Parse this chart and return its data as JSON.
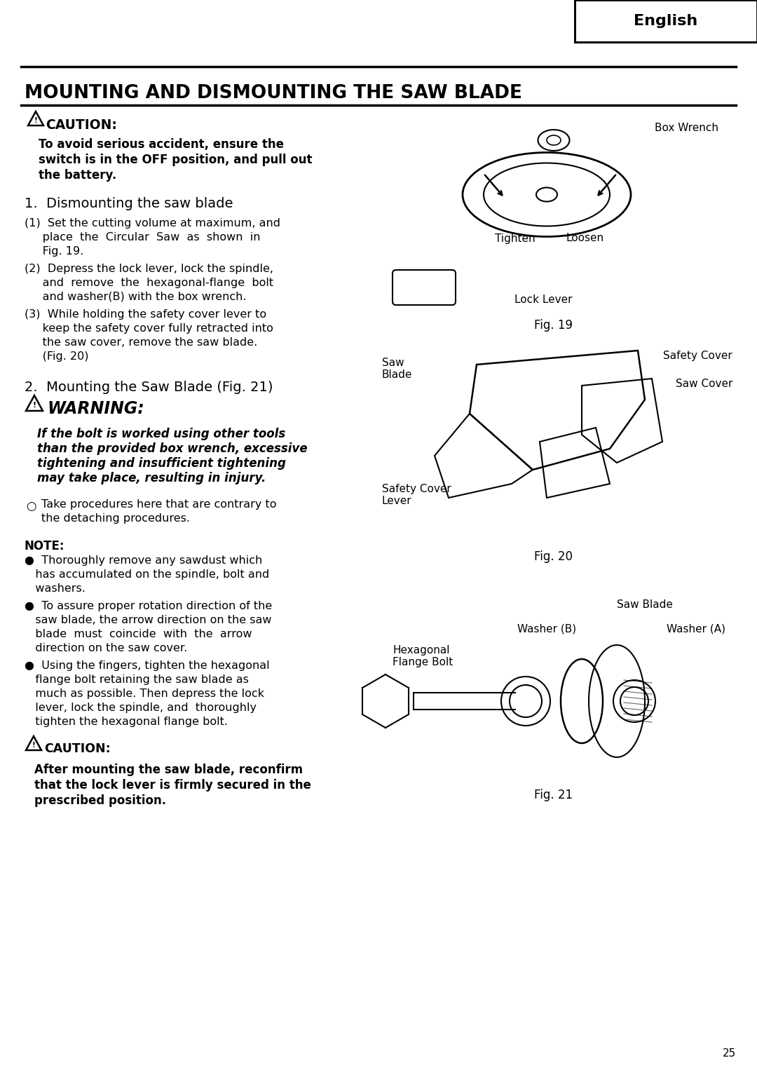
{
  "bg_color": "#ffffff",
  "page_width": 10.8,
  "page_height": 15.29,
  "header_text": "English",
  "title": "MOUNTING AND DISMOUNTING THE SAW BLADE",
  "caution_symbol": "⚠",
  "caution_label": "CAUTION:",
  "caution_text": "To avoid serious accident, ensure the\nswitch is in the OFF position, and pull out\nthe battery.",
  "section1_title": "1.  Dismounting the saw blade",
  "step1": "(1)  Set the cutting volume at maximum, and\n     place the Circular Saw as shown in\n     Fig. 19.",
  "step2": "(2)  Depress the lock lever, lock the spindle,\n     and  remove  the  hexagonal-flange  bolt\n     and washer(B) with the box wrench.",
  "step3": "(3)  While holding the safety cover lever to\n     keep the safety cover fully retracted into\n     the saw cover, remove the saw blade.\n     (Fig. 20)",
  "section2_title": "2.  Mounting the Saw Blade (Fig. 21)",
  "warning_label": "WARNING:",
  "warning_text": "If the bolt is worked using other tools\nthan the provided box wrench, excessive\ntightening and insufficient tightening\nmay take place, resulting in injury.",
  "circle_bullet": "○",
  "circle_text": "Take procedures here that are contrary to\nthe detaching procedures.",
  "note_label": "NOTE:",
  "note1": "●  Thoroughly remove any sawdust which\n   has accumulated on the spindle, bolt and\n   washers.",
  "note2": "●  To assure proper rotation direction of the\n   saw blade, the arrow direction on the saw\n   blade  must  coincide  with  the  arrow\n   direction on the saw cover.",
  "note3": "●  Using the fingers, tighten the hexagonal\n   flange bolt retaining the saw blade as\n   much as possible. Then depress the lock\n   lever, lock the spindle, and  thoroughly\n   tighten the hexagonal flange bolt.",
  "caution2_label": "CAUTION:",
  "caution2_text": "After mounting the saw blade, reconfirm\nthat the lock lever is firmly secured in the\nprescribed position.",
  "fig19_label": "Fig. 19",
  "fig20_label": "Fig. 20",
  "fig21_label": "Fig. 21",
  "page_number": "25",
  "fig19_annotations": {
    "box_wrench": "Box Wrench",
    "tighten": "Tighten",
    "loosen": "Loosen",
    "lock_lever": "Lock Lever"
  },
  "fig20_annotations": {
    "saw_blade": "Saw\nBlade",
    "safety_cover": "Safety Cover",
    "saw_cover": "Saw Cover",
    "safety_cover_lever": "Safety Cover\nLever"
  },
  "fig21_annotations": {
    "saw_blade": "Saw Blade",
    "washer_b": "Washer (B)",
    "hexagonal_flange_bolt": "Hexagonal\nFlange Bolt",
    "washer_a": "Washer (A)"
  }
}
